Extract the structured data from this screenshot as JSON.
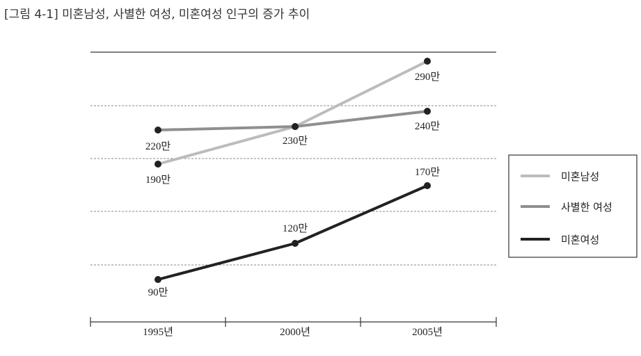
{
  "title": "[그림 4-1] 미혼남성, 사별한 여성, 미혼여성 인구의 증가 추이",
  "chart_data": {
    "type": "line",
    "title": "[그림 4-1] 미혼남성, 사별한 여성, 미혼여성 인구의 증가 추이",
    "xlabel": "",
    "ylabel": "",
    "categories": [
      "1995년",
      "2000년",
      "2005년"
    ],
    "grid": true,
    "legend_position": "right",
    "series": [
      {
        "name": "미혼남성",
        "values": [
          190,
          230,
          290
        ],
        "labels": [
          "190만",
          "230만",
          "290만"
        ],
        "color": "#bcbcbc"
      },
      {
        "name": "사별한 여성",
        "values": [
          220,
          230,
          240
        ],
        "labels": [
          "220만",
          "230만",
          "240만"
        ],
        "color": "#8f8f8f"
      },
      {
        "name": "미혼여성",
        "values": [
          90,
          120,
          170
        ],
        "labels": [
          "90만",
          "120만",
          "170만"
        ],
        "color": "#222222"
      }
    ]
  }
}
